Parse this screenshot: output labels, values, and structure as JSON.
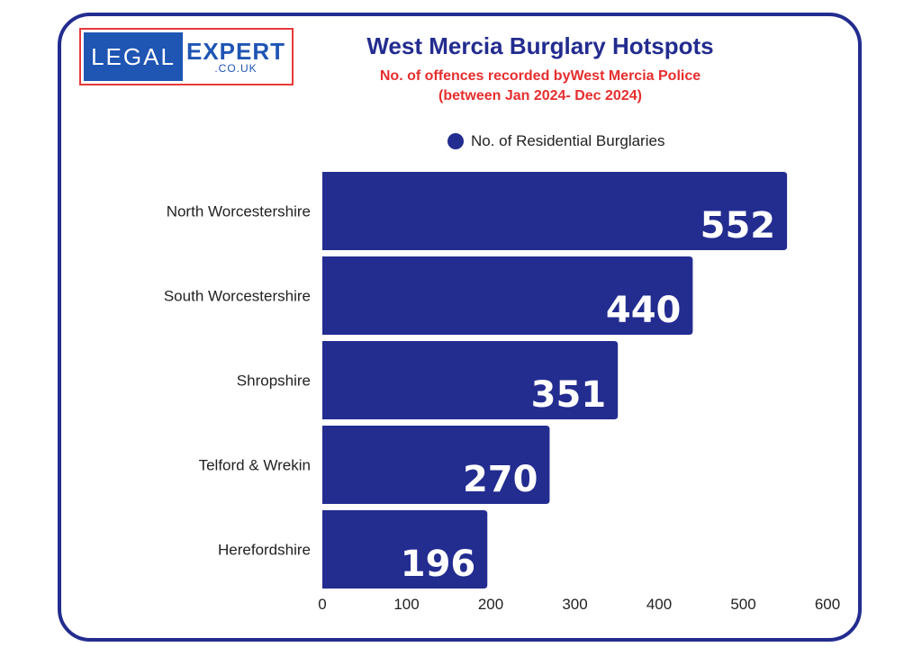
{
  "logo": {
    "left_text": "LEGAL",
    "right_text": "EXPERT",
    "domain": ".CO.UK"
  },
  "header": {
    "title": "West Mercia Burglary Hotspots",
    "subtitle_line1": "No. of offences recorded byWest Mercia Police",
    "subtitle_line2": "(between Jan 2024- Dec 2024)"
  },
  "colors": {
    "bar": "#232c8f",
    "frame": "#232c8f",
    "subtitle": "#e62e2e",
    "logo_blue": "#1f55b3",
    "logo_border": "#e63a3a"
  },
  "chart_data": {
    "type": "bar",
    "orientation": "horizontal",
    "categories": [
      "North Worcestershire",
      "South Worcestershire",
      "Shropshire",
      "Telford & Wrekin",
      "Herefordshire"
    ],
    "series": [
      {
        "name": "No. of Residential Burglaries",
        "values": [
          552,
          440,
          351,
          270,
          196
        ]
      }
    ],
    "title": "West Mercia Burglary Hotspots",
    "xlim": [
      0,
      600
    ],
    "xticks": [
      0,
      100,
      200,
      300,
      400,
      500,
      600
    ],
    "legend": "top-center",
    "grid": false
  }
}
